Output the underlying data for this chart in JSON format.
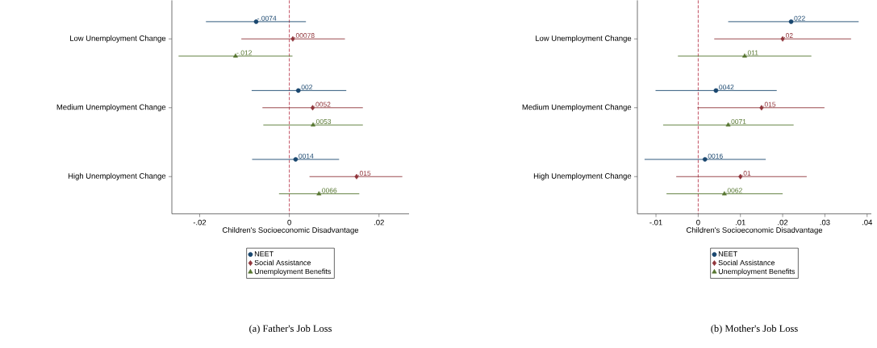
{
  "chart_data": [
    {
      "type": "scatter",
      "orientation": "horizontal",
      "title": "(a) Father's Job Loss",
      "xlabel": "Children's Socioeconomic Disadvantage",
      "legend": "bottom",
      "categories": [
        "Low Unemployment Change",
        "Medium Unemployment Change",
        "High Unemployment Change"
      ],
      "xlim": [
        -0.0262,
        0.0267
      ],
      "xticks": [
        {
          "value": -0.02,
          "label": "-.02"
        },
        0,
        {
          "value": 0.02,
          "label": ".02"
        }
      ],
      "ref_lines": [
        {
          "axis": "x",
          "value": 0,
          "color": "#b2233a",
          "line_style": "dashed"
        }
      ],
      "series": [
        {
          "name": "NEET",
          "color": "#1a476f",
          "marker": "circle",
          "values": [
            -0.0074,
            0.002,
            0.0014
          ],
          "errors": [
            [
              -0.0186,
              0.0037
            ],
            [
              -0.0084,
              0.0127
            ],
            [
              -0.0083,
              0.0111
            ]
          ],
          "value_labels": [
            "-.0074",
            ".002",
            ".0014"
          ]
        },
        {
          "name": "Social Assistance",
          "color": "#90353b",
          "marker": "diamond",
          "values": [
            0.00078,
            0.0052,
            0.015
          ],
          "errors": [
            [
              -0.0107,
              0.0124
            ],
            [
              -0.006,
              0.0164
            ],
            [
              0.0045,
              0.0252
            ]
          ],
          "value_labels": [
            ".00078",
            ".0052",
            ".015"
          ]
        },
        {
          "name": "Unemployment Benefits",
          "color": "#55752f",
          "marker": "triangle",
          "values": [
            -0.012,
            0.0053,
            0.0066
          ],
          "errors": [
            [
              -0.0247,
              0.0007
            ],
            [
              -0.0058,
              0.0164
            ],
            [
              -0.0023,
              0.0156
            ]
          ],
          "value_labels": [
            "-.012",
            ".0053",
            ".0066"
          ]
        }
      ]
    },
    {
      "type": "scatter",
      "orientation": "horizontal",
      "title": "(b) Mother's Job Loss",
      "xlabel": "Children's Socioeconomic Disadvantage",
      "legend": "bottom",
      "categories": [
        "Low Unemployment Change",
        "Medium Unemployment Change",
        "High Unemployment Change"
      ],
      "xlim": [
        -0.0144,
        0.041
      ],
      "xticks": [
        {
          "value": -0.01,
          "label": "-.01"
        },
        0,
        {
          "value": 0.01,
          "label": ".01"
        },
        {
          "value": 0.02,
          "label": ".02"
        },
        {
          "value": 0.03,
          "label": ".03"
        },
        {
          "value": 0.04,
          "label": ".04"
        }
      ],
      "ref_lines": [
        {
          "axis": "x",
          "value": 0,
          "color": "#b2233a",
          "line_style": "dashed"
        }
      ],
      "series": [
        {
          "name": "NEET",
          "color": "#1a476f",
          "marker": "circle",
          "values": [
            0.022,
            0.0042,
            0.0016
          ],
          "errors": [
            [
              0.0071,
              0.038
            ],
            [
              -0.0101,
              0.0186
            ],
            [
              -0.0127,
              0.016
            ]
          ],
          "value_labels": [
            ".022",
            ".0042",
            ".0016"
          ]
        },
        {
          "name": "Social Assistance",
          "color": "#90353b",
          "marker": "diamond",
          "values": [
            0.02,
            0.015,
            0.01
          ],
          "errors": [
            [
              0.0038,
              0.0362
            ],
            [
              -0.0002,
              0.0299
            ],
            [
              -0.0052,
              0.0257
            ]
          ],
          "value_labels": [
            ".02",
            ".015",
            ".01"
          ]
        },
        {
          "name": "Unemployment Benefits",
          "color": "#55752f",
          "marker": "triangle",
          "values": [
            0.011,
            0.0071,
            0.0062
          ],
          "errors": [
            [
              -0.0048,
              0.0268
            ],
            [
              -0.0083,
              0.0226
            ],
            [
              -0.0075,
              0.02
            ]
          ],
          "value_labels": [
            ".011",
            ".0071",
            ".0062"
          ]
        }
      ]
    }
  ]
}
